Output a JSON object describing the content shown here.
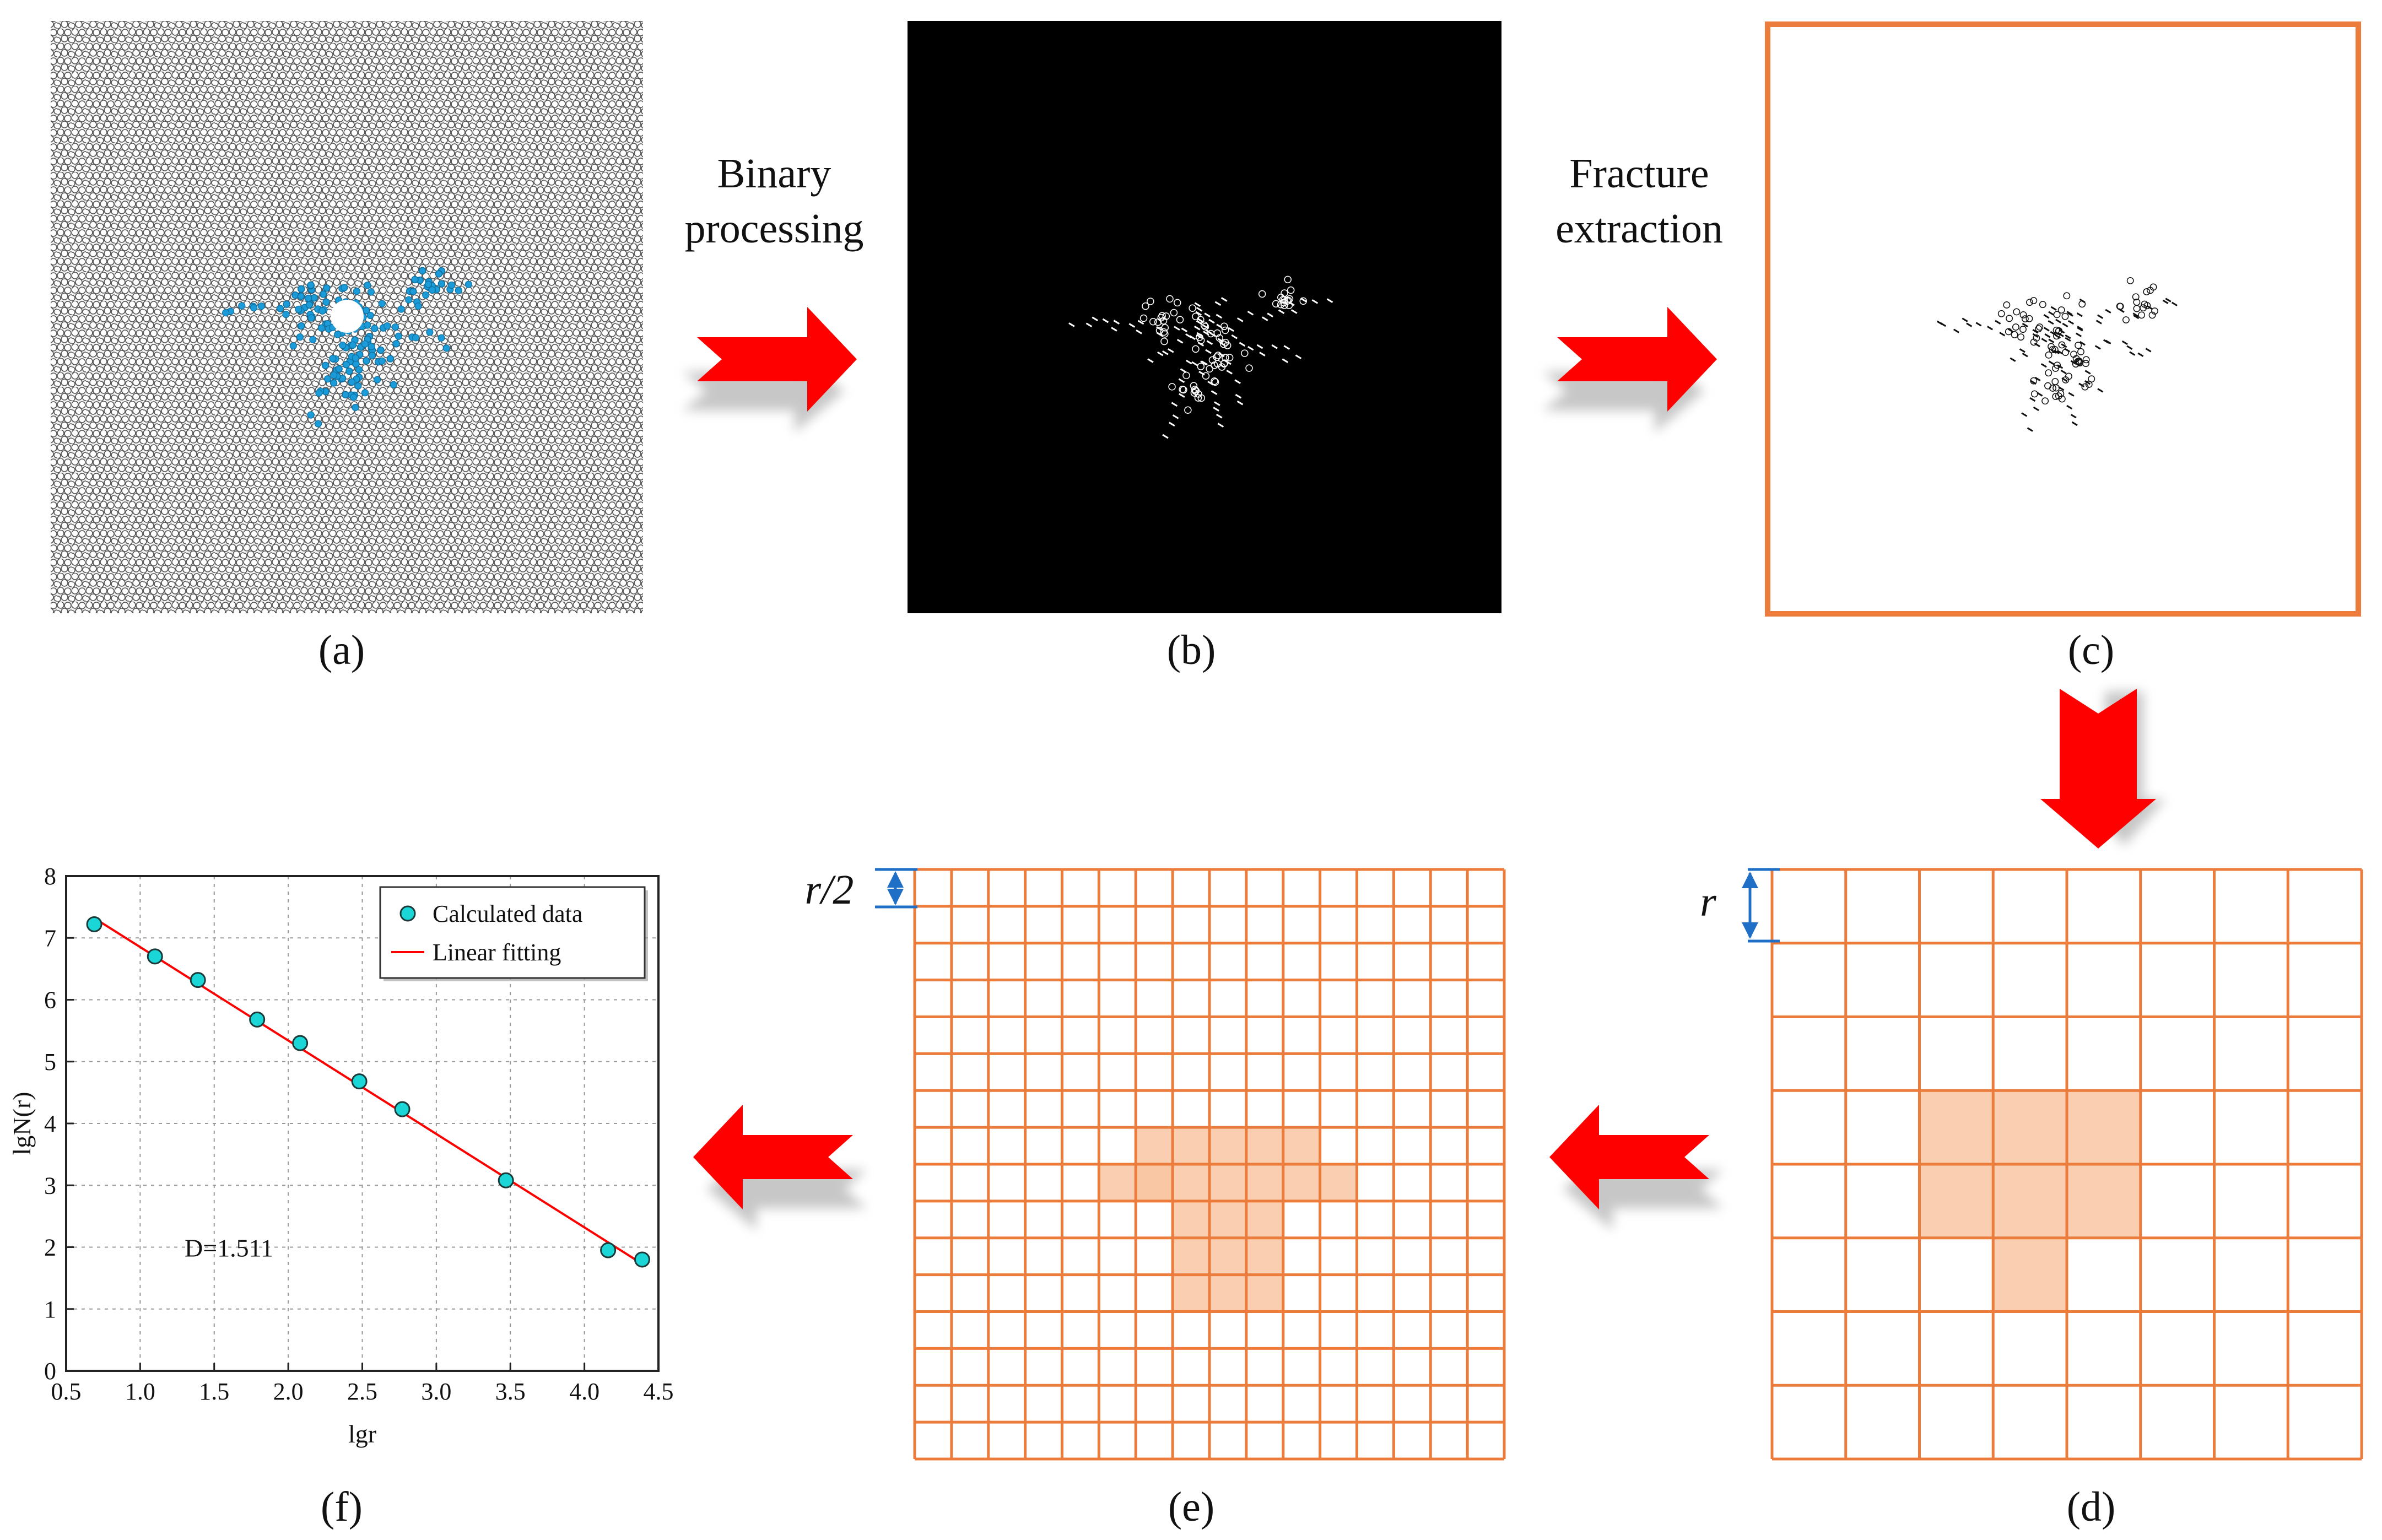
{
  "panels": {
    "a": {
      "label": "(a)"
    },
    "b": {
      "label": "(b)"
    },
    "c": {
      "label": "(c)"
    },
    "d": {
      "label": "(d)",
      "box_label": "r"
    },
    "e": {
      "label": "(e)",
      "box_label": "r/2"
    },
    "f": {
      "label": "(f)"
    }
  },
  "steps": {
    "binary": {
      "line1": "Binary",
      "line2": "processing"
    },
    "extract": {
      "line1": "Fracture",
      "line2": "extraction"
    }
  },
  "colors": {
    "arrow": "#ff0000",
    "grid": "#ec7c3c",
    "crack_blue": "#1b9bd8",
    "dimension": "#1f6fc7",
    "fill_highlight": "#f9c6a2",
    "marker": "#1bd6d6",
    "fit_line": "#ff0000"
  },
  "chart_data": {
    "type": "scatter",
    "xlabel": "lgr",
    "ylabel": "lgN(r)",
    "xlim": [
      0.5,
      4.5
    ],
    "ylim": [
      0,
      8
    ],
    "xticks": [
      "0.5",
      "1.0",
      "1.5",
      "2.0",
      "2.5",
      "3.0",
      "3.5",
      "4.0",
      "4.5"
    ],
    "yticks": [
      "0",
      "1",
      "2",
      "3",
      "4",
      "5",
      "6",
      "7",
      "8"
    ],
    "grid": true,
    "legend_position": "top-right",
    "annotation": "D=1.511",
    "series": [
      {
        "name": "Calculated data",
        "kind": "scatter",
        "x": [
          0.69,
          1.1,
          1.39,
          1.79,
          2.08,
          2.48,
          2.77,
          3.47,
          4.16,
          4.39
        ],
        "y": [
          7.22,
          6.7,
          6.32,
          5.68,
          5.3,
          4.68,
          4.23,
          3.08,
          1.95,
          1.8
        ]
      },
      {
        "name": "Linear fitting",
        "kind": "line",
        "x": [
          0.69,
          4.39
        ],
        "y": [
          7.32,
          1.73
        ]
      }
    ]
  }
}
